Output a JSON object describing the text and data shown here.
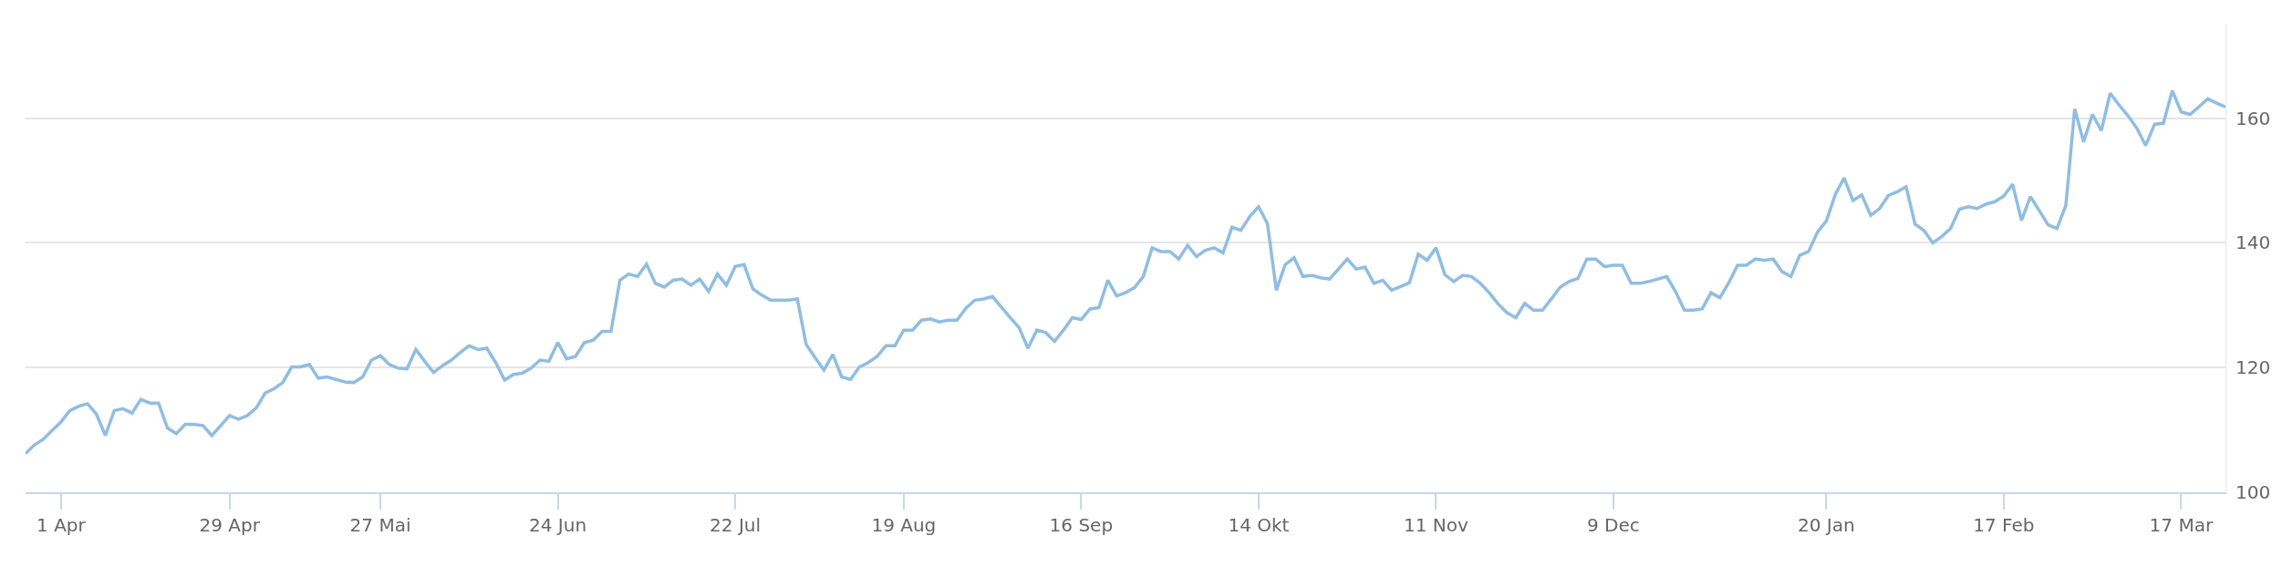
{
  "chart_data": {
    "type": "line",
    "categories": [
      null,
      null,
      null,
      null,
      "1 Apr",
      null,
      null,
      null,
      null,
      null,
      null,
      null,
      null,
      null,
      null,
      null,
      null,
      null,
      null,
      null,
      null,
      null,
      null,
      "29 Apr",
      null,
      null,
      null,
      null,
      null,
      null,
      null,
      null,
      null,
      null,
      null,
      null,
      null,
      null,
      null,
      null,
      "27 Mai",
      null,
      null,
      null,
      null,
      null,
      null,
      null,
      null,
      null,
      null,
      null,
      null,
      null,
      null,
      null,
      null,
      null,
      null,
      null,
      "24 Jun",
      null,
      null,
      null,
      null,
      null,
      null,
      null,
      null,
      null,
      null,
      null,
      null,
      null,
      null,
      null,
      null,
      null,
      null,
      null,
      "22 Jul",
      null,
      null,
      null,
      null,
      null,
      null,
      null,
      null,
      null,
      null,
      null,
      null,
      null,
      null,
      null,
      null,
      null,
      null,
      "19 Aug",
      null,
      null,
      null,
      null,
      null,
      null,
      null,
      null,
      null,
      null,
      null,
      null,
      null,
      null,
      null,
      null,
      null,
      null,
      null,
      "16 Sep",
      null,
      null,
      null,
      null,
      null,
      null,
      null,
      null,
      null,
      null,
      null,
      null,
      null,
      null,
      null,
      null,
      null,
      null,
      null,
      "14 Okt",
      null,
      null,
      null,
      null,
      null,
      null,
      null,
      null,
      null,
      null,
      null,
      null,
      null,
      null,
      null,
      null,
      null,
      null,
      null,
      "11 Nov",
      null,
      null,
      null,
      null,
      null,
      null,
      null,
      null,
      null,
      null,
      null,
      null,
      null,
      null,
      null,
      null,
      null,
      null,
      null,
      "9 Dec",
      null,
      null,
      null,
      null,
      null,
      null,
      null,
      null,
      null,
      null,
      null,
      null,
      null,
      null,
      null,
      null,
      null,
      null,
      null,
      null,
      null,
      null,
      null,
      "20 Jan",
      null,
      null,
      null,
      null,
      null,
      null,
      null,
      null,
      null,
      null,
      null,
      null,
      null,
      null,
      null,
      null,
      null,
      null,
      null,
      "17 Feb",
      null,
      null,
      null,
      null,
      null,
      null,
      null,
      null,
      null,
      null,
      null,
      null,
      null,
      null,
      null,
      null,
      null,
      null,
      null,
      "17 Mar",
      null,
      null,
      null,
      null,
      null
    ],
    "series": [
      {
        "color": "#90bde2",
        "values": [
          106.2,
          107.6,
          108.5,
          109.9,
          111.3,
          113.1,
          113.8,
          114.2,
          112.5,
          109.1,
          113.1,
          113.4,
          112.7,
          114.9,
          114.3,
          114.3,
          110.3,
          109.4,
          110.9,
          110.9,
          110.7,
          109.1,
          110.7,
          112.3,
          111.7,
          112.3,
          113.5,
          115.9,
          116.6,
          117.6,
          120.1,
          120.1,
          120.5,
          118.3,
          118.5,
          118.1,
          117.7,
          117.6,
          118.5,
          121.2,
          121.9,
          120.5,
          119.9,
          119.8,
          122.9,
          121.0,
          119.2,
          120.3,
          121.2,
          122.4,
          123.5,
          122.9,
          123.1,
          120.8,
          118.0,
          118.9,
          119.1,
          119.9,
          121.2,
          121.0,
          124.0,
          121.4,
          121.8,
          124.0,
          124.4,
          125.8,
          125.8,
          134.0,
          135.0,
          134.6,
          136.6,
          133.5,
          132.9,
          134.0,
          134.2,
          133.2,
          134.2,
          132.2,
          135.0,
          133.2,
          136.2,
          136.5,
          132.6,
          131.6,
          130.8,
          130.8,
          130.8,
          131.0,
          123.7,
          121.6,
          119.6,
          122.1,
          118.5,
          118.1,
          120.1,
          120.8,
          121.8,
          123.5,
          123.5,
          126.0,
          126.0,
          127.6,
          127.8,
          127.3,
          127.6,
          127.6,
          129.5,
          130.8,
          131.0,
          131.4,
          129.7,
          128.0,
          126.4,
          123.1,
          126.0,
          125.6,
          124.2,
          126.0,
          128.0,
          127.7,
          129.4,
          129.6,
          134.0,
          131.5,
          132.0,
          132.8,
          134.6,
          139.2,
          138.6,
          138.6,
          137.4,
          139.6,
          137.8,
          138.8,
          139.2,
          138.4,
          142.5,
          142.0,
          144.2,
          145.8,
          143.1,
          132.4,
          136.5,
          137.6,
          134.6,
          134.8,
          134.4,
          134.2,
          135.8,
          137.4,
          135.8,
          136.1,
          133.5,
          134.0,
          132.4,
          133.0,
          133.6,
          138.2,
          137.2,
          139.2,
          134.9,
          133.8,
          134.8,
          134.6,
          133.5,
          132.0,
          130.2,
          128.8,
          128.0,
          130.3,
          129.2,
          129.2,
          131.0,
          132.9,
          133.8,
          134.3,
          137.4,
          137.4,
          136.2,
          136.4,
          136.4,
          133.5,
          133.5,
          133.8,
          134.2,
          134.6,
          132.2,
          129.2,
          129.2,
          129.4,
          132.0,
          131.2,
          133.6,
          136.4,
          136.4,
          137.4,
          137.2,
          137.4,
          135.4,
          134.6,
          138.0,
          138.6,
          141.7,
          143.5,
          147.7,
          150.4,
          146.8,
          147.7,
          144.4,
          145.5,
          147.6,
          148.2,
          149.0,
          143.0,
          142.0,
          140.0,
          141.0,
          142.3,
          145.4,
          145.8,
          145.5,
          146.2,
          146.6,
          147.5,
          149.4,
          143.6,
          147.4,
          145.2,
          142.9,
          142.3,
          146.0,
          161.5,
          156.2,
          160.6,
          158.0,
          164.0,
          162.1,
          160.4,
          158.4,
          155.6,
          159.0,
          159.2,
          164.4,
          161.0,
          160.6,
          161.8,
          163.1,
          162.4,
          161.8
        ]
      }
    ],
    "ylim": [
      100,
      175
    ],
    "yticks": [
      100,
      120,
      140,
      160
    ],
    "grid": "y"
  }
}
